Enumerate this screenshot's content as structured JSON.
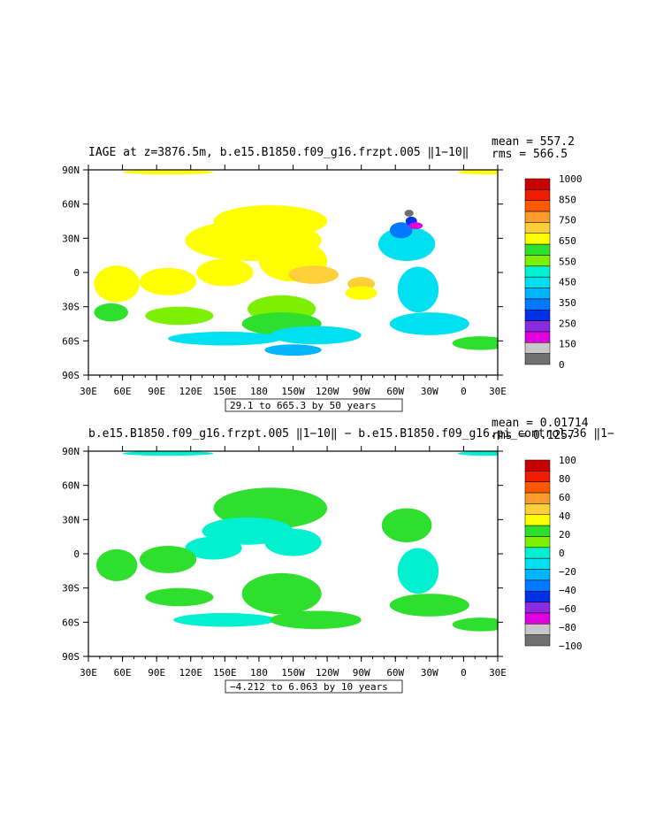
{
  "chart_data": [
    {
      "type": "heatmap",
      "title": "IAGE at z=3876.5m, b.e15.B1850.f09_g16.frzpt.005 ‖1−10‖",
      "stats": [
        "mean = 557.2",
        "rms = 566.5"
      ],
      "contour_info": "29.1 to 665.3 by 50 years",
      "x_ticks": [
        "30E",
        "60E",
        "90E",
        "120E",
        "150E",
        "180",
        "150W",
        "120W",
        "90W",
        "60W",
        "30W",
        "0",
        "30E"
      ],
      "y_ticks": [
        "90N",
        "60N",
        "30N",
        "0",
        "30S",
        "60S",
        "90S"
      ],
      "colorbar_labels": [
        "1000",
        "850",
        "750",
        "650",
        "550",
        "450",
        "350",
        "250",
        "150",
        "0"
      ],
      "colorbar_colors": [
        "#c80000",
        "#ee1c00",
        "#ff5a00",
        "#ff9a2e",
        "#ffcf3a",
        "#ffff00",
        "#2edf2e",
        "#7cf000",
        "#00f0d0",
        "#00e0f0",
        "#00b4ff",
        "#0078ff",
        "#0030e8",
        "#8a2be2",
        "#e000e0",
        "#c8c8c8",
        "#707070"
      ],
      "blobs": [
        {
          "lon": 190,
          "lat": 45,
          "rlon": 50,
          "rlat": 14,
          "color": "#ffff00"
        },
        {
          "lon": 175,
          "lat": 28,
          "rlon": 60,
          "rlat": 18,
          "color": "#ffff00"
        },
        {
          "lon": 210,
          "lat": 10,
          "rlon": 30,
          "rlat": 18,
          "color": "#ffff00"
        },
        {
          "lon": 150,
          "lat": 0,
          "rlon": 25,
          "rlat": 12,
          "color": "#ffff00"
        },
        {
          "lon": 100,
          "lat": -8,
          "rlon": 25,
          "rlat": 12,
          "color": "#ffff00"
        },
        {
          "lon": 55,
          "lat": -10,
          "rlon": 20,
          "rlat": 16,
          "color": "#ffff00"
        },
        {
          "lon": 228,
          "lat": -2,
          "rlon": 22,
          "rlat": 8,
          "color": "#ffcf3a"
        },
        {
          "lon": 270,
          "lat": -10,
          "rlon": 12,
          "rlat": 6,
          "color": "#ffcf3a"
        },
        {
          "lon": 270,
          "lat": -18,
          "rlon": 14,
          "rlat": 6,
          "color": "#ffff00"
        },
        {
          "lon": 200,
          "lat": -32,
          "rlon": 30,
          "rlat": 12,
          "color": "#7cf000"
        },
        {
          "lon": 200,
          "lat": -45,
          "rlon": 35,
          "rlat": 10,
          "color": "#2edf2e"
        },
        {
          "lon": 110,
          "lat": -38,
          "rlon": 30,
          "rlat": 8,
          "color": "#7cf000"
        },
        {
          "lon": 50,
          "lat": -35,
          "rlon": 15,
          "rlat": 8,
          "color": "#2edf2e"
        },
        {
          "lon": 150,
          "lat": -58,
          "rlon": 50,
          "rlat": 6,
          "color": "#00e0f0"
        },
        {
          "lon": 230,
          "lat": -55,
          "rlon": 40,
          "rlat": 8,
          "color": "#00e0f0"
        },
        {
          "lon": 210,
          "lat": -68,
          "rlon": 25,
          "rlat": 5,
          "color": "#00b4ff"
        },
        {
          "lon": 310,
          "lat": 25,
          "rlon": 25,
          "rlat": 15,
          "color": "#00e0f0"
        },
        {
          "lon": 320,
          "lat": -15,
          "rlon": 18,
          "rlat": 20,
          "color": "#00e0f0"
        },
        {
          "lon": 330,
          "lat": -45,
          "rlon": 35,
          "rlat": 10,
          "color": "#00e0f0"
        },
        {
          "lon": 375,
          "lat": -62,
          "rlon": 25,
          "rlat": 6,
          "color": "#2edf2e"
        },
        {
          "lon": 305,
          "lat": 37,
          "rlon": 10,
          "rlat": 7,
          "color": "#0078ff"
        },
        {
          "lon": 314,
          "lat": 45,
          "rlon": 5,
          "rlat": 4,
          "color": "#0030e8"
        },
        {
          "lon": 318,
          "lat": 41,
          "rlon": 6,
          "rlat": 3,
          "color": "#e000e0"
        },
        {
          "lon": 312,
          "lat": 52,
          "rlon": 4,
          "rlat": 3,
          "color": "#707070"
        },
        {
          "lon": 100,
          "lat": 88,
          "rlon": 40,
          "rlat": 2,
          "color": "#ffff00"
        },
        {
          "lon": 380,
          "lat": 88,
          "rlon": 25,
          "rlat": 2,
          "color": "#ffff00"
        }
      ]
    },
    {
      "type": "heatmap",
      "title": "b.e15.B1850.f09_g16.frzpt.005 ‖1−10‖ − b.e15.B1850.f09_g16.pi_control.36 ‖1−",
      "stats": [
        "mean = 0.01714",
        "rms = 0.1257"
      ],
      "contour_info": "−4.212 to 6.063 by 10 years",
      "x_ticks": [
        "30E",
        "60E",
        "90E",
        "120E",
        "150E",
        "180",
        "150W",
        "120W",
        "90W",
        "60W",
        "30W",
        "0",
        "30E"
      ],
      "y_ticks": [
        "90N",
        "60N",
        "30N",
        "0",
        "30S",
        "60S",
        "90S"
      ],
      "colorbar_labels": [
        "100",
        "80",
        "60",
        "40",
        "20",
        "0",
        "−20",
        "−40",
        "−60",
        "−80",
        "−100"
      ],
      "colorbar_colors": [
        "#c80000",
        "#ee1c00",
        "#ff5a00",
        "#ff9a2e",
        "#ffcf3a",
        "#ffff00",
        "#2edf2e",
        "#7cf000",
        "#00f0d0",
        "#00e0f0",
        "#00b4ff",
        "#0078ff",
        "#0030e8",
        "#8a2be2",
        "#e000e0",
        "#c8c8c8",
        "#707070"
      ],
      "blobs": [
        {
          "lon": 190,
          "lat": 40,
          "rlon": 50,
          "rlat": 18,
          "color": "#2edf2e"
        },
        {
          "lon": 170,
          "lat": 20,
          "rlon": 40,
          "rlat": 12,
          "color": "#00f0d0"
        },
        {
          "lon": 210,
          "lat": 10,
          "rlon": 25,
          "rlat": 12,
          "color": "#00f0d0"
        },
        {
          "lon": 140,
          "lat": 5,
          "rlon": 25,
          "rlat": 10,
          "color": "#00f0d0"
        },
        {
          "lon": 100,
          "lat": -5,
          "rlon": 25,
          "rlat": 12,
          "color": "#2edf2e"
        },
        {
          "lon": 55,
          "lat": -10,
          "rlon": 18,
          "rlat": 14,
          "color": "#2edf2e"
        },
        {
          "lon": 200,
          "lat": -35,
          "rlon": 35,
          "rlat": 18,
          "color": "#2edf2e"
        },
        {
          "lon": 110,
          "lat": -38,
          "rlon": 30,
          "rlat": 8,
          "color": "#2edf2e"
        },
        {
          "lon": 150,
          "lat": -58,
          "rlon": 45,
          "rlat": 6,
          "color": "#00f0d0"
        },
        {
          "lon": 230,
          "lat": -58,
          "rlon": 40,
          "rlat": 8,
          "color": "#2edf2e"
        },
        {
          "lon": 310,
          "lat": 25,
          "rlon": 22,
          "rlat": 15,
          "color": "#2edf2e"
        },
        {
          "lon": 320,
          "lat": -15,
          "rlon": 18,
          "rlat": 20,
          "color": "#00f0d0"
        },
        {
          "lon": 330,
          "lat": -45,
          "rlon": 35,
          "rlat": 10,
          "color": "#2edf2e"
        },
        {
          "lon": 375,
          "lat": -62,
          "rlon": 25,
          "rlat": 6,
          "color": "#2edf2e"
        },
        {
          "lon": 100,
          "lat": 88,
          "rlon": 40,
          "rlat": 2,
          "color": "#00f0d0"
        },
        {
          "lon": 380,
          "lat": 88,
          "rlon": 25,
          "rlat": 2,
          "color": "#00f0d0"
        }
      ]
    }
  ]
}
